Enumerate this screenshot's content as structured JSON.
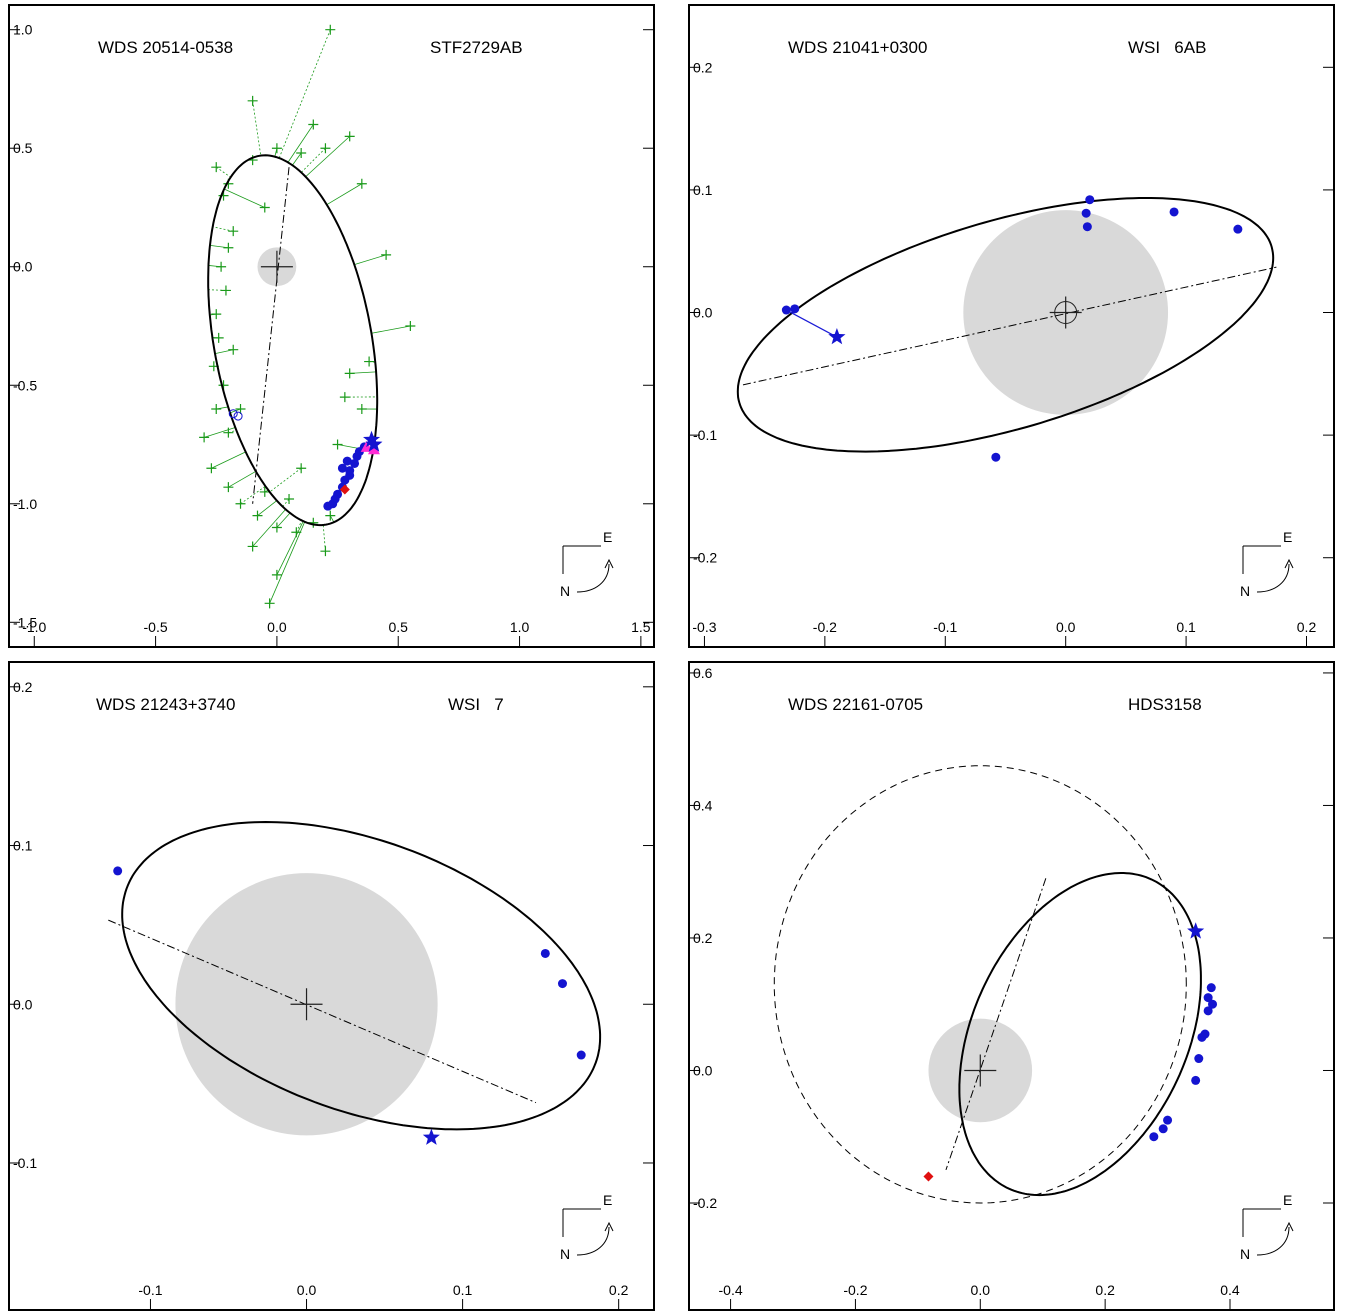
{
  "panels": [
    {
      "wds": "WDS 20514-0538",
      "name": "STF2729AB",
      "chart_data": {
        "type": "scatter",
        "xlim": [
          -1.1,
          1.55
        ],
        "ylim": [
          -1.6,
          1.1
        ],
        "x_ticks": [
          "-1.0",
          "-0.5",
          "0.0",
          "0.5",
          "1.0",
          "1.5"
        ],
        "y_ticks": [
          "1.0",
          "0.5",
          "0.0",
          "-0.5",
          "-1.0",
          "-1.5"
        ],
        "orbit": {
          "cx": 0.065,
          "cy": -0.31,
          "a": 0.79,
          "b": 0.325,
          "rot_deg": -80
        },
        "shaded_circle": {
          "cx": 0,
          "cy": 0,
          "r": 0.08
        },
        "line_of_nodes": [
          [
            0.05,
            0.42
          ],
          [
            -0.1,
            -1.0
          ]
        ],
        "compass": {
          "E": "E",
          "N": "N"
        },
        "micrometer_points": [
          [
            -0.25,
            0.42
          ],
          [
            -0.2,
            0.35
          ],
          [
            -0.22,
            0.3
          ],
          [
            -0.18,
            0.15
          ],
          [
            -0.2,
            0.08
          ],
          [
            -0.23,
            0.0
          ],
          [
            -0.21,
            -0.1
          ],
          [
            -0.25,
            -0.2
          ],
          [
            -0.24,
            -0.3
          ],
          [
            -0.26,
            -0.42
          ],
          [
            -0.22,
            -0.5
          ],
          [
            -0.25,
            -0.6
          ],
          [
            -0.2,
            -0.7
          ],
          [
            -0.27,
            -0.85
          ],
          [
            -0.2,
            -0.93
          ],
          [
            -0.15,
            -1.0
          ],
          [
            -0.08,
            -1.05
          ],
          [
            0.0,
            -1.1
          ],
          [
            0.08,
            -1.12
          ],
          [
            0.15,
            -1.08
          ],
          [
            0.22,
            -1.05
          ],
          [
            -0.1,
            0.45
          ],
          [
            0.0,
            0.5
          ],
          [
            0.1,
            0.48
          ],
          [
            0.2,
            0.5
          ],
          [
            0.3,
            0.55
          ],
          [
            0.15,
            0.6
          ],
          [
            -0.1,
            0.7
          ],
          [
            0.35,
            0.35
          ],
          [
            0.45,
            0.05
          ],
          [
            0.38,
            -0.4
          ],
          [
            0.3,
            -0.45
          ],
          [
            0.55,
            -0.25
          ],
          [
            0.2,
            -1.2
          ],
          [
            0.0,
            -1.3
          ],
          [
            -0.03,
            -1.42
          ],
          [
            0.22,
            1.0
          ],
          [
            -0.05,
            0.25
          ],
          [
            -0.05,
            -0.95
          ],
          [
            0.05,
            -0.98
          ],
          [
            -0.3,
            -0.72
          ],
          [
            -0.1,
            -1.18
          ],
          [
            0.28,
            -0.55
          ],
          [
            0.35,
            -0.6
          ],
          [
            0.25,
            -0.75
          ],
          [
            0.1,
            -0.85
          ],
          [
            -0.15,
            -0.6
          ],
          [
            -0.18,
            -0.35
          ]
        ],
        "speckle_points": [
          [
            0.21,
            -1.01
          ],
          [
            0.23,
            -1.0
          ],
          [
            0.25,
            -0.96
          ],
          [
            0.27,
            -0.93
          ],
          [
            0.28,
            -0.9
          ],
          [
            0.3,
            -0.88
          ],
          [
            0.27,
            -0.85
          ],
          [
            0.29,
            -0.82
          ],
          [
            0.32,
            -0.83
          ],
          [
            0.33,
            -0.8
          ],
          [
            0.34,
            -0.78
          ],
          [
            0.36,
            -0.76
          ],
          [
            0.24,
            -0.98
          ],
          [
            0.3,
            -0.86
          ]
        ],
        "star_points": [
          [
            0.39,
            -0.73
          ],
          [
            0.4,
            -0.75
          ]
        ],
        "triangle_points": [
          [
            0.37,
            -0.76
          ],
          [
            0.4,
            -0.77
          ]
        ],
        "diamond_points": [
          [
            0.28,
            -0.94
          ]
        ],
        "open_circle_points": [
          [
            -0.18,
            -0.62
          ],
          [
            -0.16,
            -0.63
          ]
        ]
      }
    },
    {
      "wds": "WDS 21041+0300",
      "name": "WSI   6AB",
      "chart_data": {
        "type": "scatter",
        "xlim": [
          -0.312,
          0.222
        ],
        "ylim": [
          -0.272,
          0.25
        ],
        "x_ticks": [
          "-0.3",
          "-0.2",
          "-0.1",
          "0.0",
          "0.1",
          "0.2"
        ],
        "y_ticks": [
          "0.2",
          "0.1",
          "0.0",
          "-0.1",
          "-0.2"
        ],
        "orbit": {
          "cx": -0.05,
          "cy": -0.01,
          "a": 0.23,
          "b": 0.085,
          "rot_deg": 16
        },
        "shaded_circle": {
          "cx": 0,
          "cy": 0,
          "r": 0.085
        },
        "line_of_nodes": [
          [
            -0.268,
            -0.059
          ],
          [
            0.175,
            0.037
          ]
        ],
        "compass": {
          "E": "E",
          "N": "N"
        },
        "speckle_points": [
          [
            -0.232,
            0.002
          ],
          [
            -0.225,
            0.003
          ],
          [
            0.017,
            0.081
          ],
          [
            0.018,
            0.07
          ],
          [
            0.02,
            0.092
          ],
          [
            0.09,
            0.082
          ],
          [
            0.143,
            0.068
          ],
          [
            -0.058,
            -0.118
          ]
        ],
        "star_points": [
          [
            -0.19,
            -0.02
          ]
        ],
        "residual_line": [
          [
            -0.232,
            0.002
          ],
          [
            -0.19,
            -0.02
          ]
        ]
      }
    },
    {
      "wds": "WDS 21243+3740",
      "name": "WSI   7",
      "chart_data": {
        "type": "scatter",
        "xlim": [
          -0.19,
          0.222
        ],
        "ylim": [
          -0.192,
          0.215
        ],
        "x_ticks": [
          "-0.1",
          "0.0",
          "0.1",
          "0.2"
        ],
        "y_ticks": [
          "0.2",
          "0.1",
          "0.0",
          "-0.1"
        ],
        "orbit": {
          "cx": 0.035,
          "cy": 0.018,
          "a": 0.16,
          "b": 0.085,
          "rot_deg": -20
        },
        "shaded_circle": {
          "cx": 0,
          "cy": 0,
          "r": 0.084
        },
        "line_of_nodes": [
          [
            -0.127,
            0.053
          ],
          [
            0.147,
            -0.062
          ]
        ],
        "compass": {
          "E": "E",
          "N": "N"
        },
        "speckle_points": [
          [
            -0.121,
            0.084
          ],
          [
            0.153,
            0.032
          ],
          [
            0.164,
            0.013
          ],
          [
            0.176,
            -0.032
          ]
        ],
        "star_points": [
          [
            0.08,
            -0.084
          ]
        ]
      }
    },
    {
      "wds": "WDS 22161-0705",
      "name": "HDS3158",
      "chart_data": {
        "type": "scatter",
        "xlim": [
          -0.465,
          0.565
        ],
        "ylim": [
          -0.36,
          0.615
        ],
        "x_ticks": [
          "-0.4",
          "-0.2",
          "0.0",
          "0.2",
          "0.4"
        ],
        "y_ticks": [
          "0.6",
          "0.4",
          "0.2",
          "0.0",
          "-0.2"
        ],
        "orbit": {
          "cx": 0.16,
          "cy": 0.055,
          "a": 0.26,
          "b": 0.17,
          "rot_deg": 62
        },
        "prior_orbit": {
          "cx": 0.0,
          "cy": 0.13,
          "a": 0.33,
          "b": 0.33,
          "rot_deg": 0
        },
        "shaded_circle": {
          "cx": 0,
          "cy": 0,
          "r": 0.083
        },
        "line_of_nodes": [
          [
            0.105,
            0.29
          ],
          [
            -0.055,
            -0.15
          ]
        ],
        "compass": {
          "E": "E",
          "N": "N"
        },
        "speckle_points": [
          [
            0.37,
            0.125
          ],
          [
            0.365,
            0.11
          ],
          [
            0.372,
            0.1
          ],
          [
            0.365,
            0.09
          ],
          [
            0.36,
            0.055
          ],
          [
            0.355,
            0.05
          ],
          [
            0.35,
            0.018
          ],
          [
            0.345,
            -0.015
          ],
          [
            0.3,
            -0.075
          ],
          [
            0.293,
            -0.088
          ],
          [
            0.278,
            -0.1
          ]
        ],
        "star_points": [
          [
            0.345,
            0.21
          ]
        ],
        "diamond_points": [
          [
            -0.083,
            -0.16
          ]
        ]
      }
    }
  ]
}
